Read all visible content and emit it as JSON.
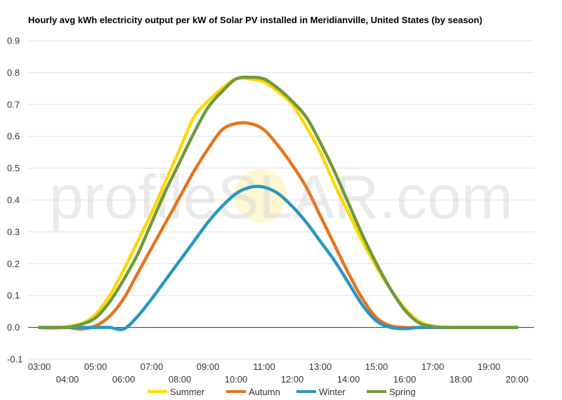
{
  "chart_data": {
    "type": "line",
    "title": "Hourly avg kWh electricity output per kW of Solar PV installed in Meridianville, United States (by season)",
    "xlabel": "",
    "ylabel": "",
    "ylim": [
      -0.1,
      0.9
    ],
    "yticks": [
      "-0.1",
      "0.0",
      "0.1",
      "0.2",
      "0.3",
      "0.4",
      "0.5",
      "0.6",
      "0.7",
      "0.8",
      "0.9"
    ],
    "x_upper_labels": [
      "03:00",
      "05:00",
      "07:00",
      "09:00",
      "11:00",
      "13:00",
      "15:00",
      "17:00",
      "19:00"
    ],
    "x_lower_labels": [
      "04:00",
      "06:00",
      "08:00",
      "10:00",
      "12:00",
      "14:00",
      "16:00",
      "18:00",
      "20:00"
    ],
    "x": [
      3,
      3.5,
      4,
      4.5,
      5,
      5.5,
      6,
      6.5,
      7,
      7.5,
      8,
      8.5,
      9,
      9.5,
      10,
      10.5,
      11,
      11.5,
      12,
      12.5,
      13,
      13.5,
      14,
      14.5,
      15,
      15.5,
      16,
      16.5,
      17,
      17.5,
      18,
      18.5,
      19,
      19.5,
      20
    ],
    "grid": true,
    "legend_position": "bottom",
    "series": [
      {
        "name": "Summer",
        "color": "#ffd700",
        "values": [
          0.0,
          -0.003,
          0.003,
          0.012,
          0.04,
          0.1,
          0.18,
          0.27,
          0.36,
          0.46,
          0.56,
          0.66,
          0.71,
          0.75,
          0.78,
          0.78,
          0.77,
          0.74,
          0.7,
          0.63,
          0.55,
          0.45,
          0.36,
          0.27,
          0.19,
          0.12,
          0.06,
          0.02,
          0.004,
          0.0,
          0.0,
          0.0,
          0.0,
          0.0,
          0.0
        ]
      },
      {
        "name": "Autumn",
        "color": "#e8731e",
        "values": [
          0.0,
          0.0,
          0.0,
          -0.005,
          0.005,
          0.035,
          0.09,
          0.17,
          0.25,
          0.33,
          0.41,
          0.49,
          0.56,
          0.62,
          0.64,
          0.64,
          0.62,
          0.57,
          0.51,
          0.44,
          0.35,
          0.26,
          0.17,
          0.09,
          0.03,
          0.005,
          0.0,
          0.0,
          0.0,
          0.0,
          0.0,
          0.0,
          0.0,
          0.0,
          0.0
        ]
      },
      {
        "name": "Winter",
        "color": "#2a96c1",
        "values": [
          0.0,
          0.0,
          0.0,
          0.0,
          0.0,
          0.0,
          -0.005,
          0.035,
          0.09,
          0.15,
          0.21,
          0.27,
          0.33,
          0.38,
          0.42,
          0.44,
          0.44,
          0.42,
          0.38,
          0.33,
          0.27,
          0.21,
          0.14,
          0.07,
          0.02,
          0.0,
          -0.004,
          0.0,
          0.0,
          0.0,
          0.0,
          0.0,
          0.0,
          0.0,
          0.0
        ]
      },
      {
        "name": "Spring",
        "color": "#6f9a3c",
        "values": [
          0.0,
          0.0,
          0.0,
          0.01,
          0.03,
          0.08,
          0.15,
          0.23,
          0.33,
          0.43,
          0.52,
          0.61,
          0.69,
          0.74,
          0.78,
          0.785,
          0.78,
          0.75,
          0.71,
          0.66,
          0.58,
          0.49,
          0.39,
          0.29,
          0.2,
          0.12,
          0.055,
          0.015,
          0.003,
          0.0,
          0.0,
          0.0,
          0.0,
          0.0,
          0.0
        ]
      }
    ]
  },
  "watermark": {
    "left": "profile",
    "o": "S",
    "right": "LAR.com"
  }
}
